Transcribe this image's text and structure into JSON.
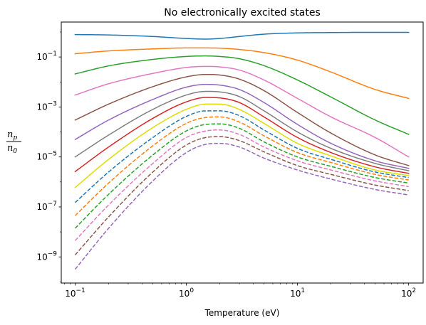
{
  "chart_data": {
    "type": "line",
    "title": "No electronically excited states",
    "xlabel": "Temperature (eV)",
    "ylabel_num": {
      "base": "n",
      "sub": "p"
    },
    "ylabel_den": {
      "base": "n",
      "sub": "0"
    },
    "xscale": "log",
    "yscale": "log",
    "xlim": [
      0.075,
      135
    ],
    "ylim": [
      9e-11,
      2.5
    ],
    "grid": false,
    "xticks": [
      {
        "value": 0.1,
        "base": "10",
        "exp": "−1"
      },
      {
        "value": 1,
        "base": "10",
        "exp": "0"
      },
      {
        "value": 10,
        "base": "10",
        "exp": "1"
      },
      {
        "value": 100,
        "base": "10",
        "exp": "2"
      }
    ],
    "yticks": [
      {
        "value": 1e-09,
        "base": "10",
        "exp": "−9"
      },
      {
        "value": 1e-07,
        "base": "10",
        "exp": "−7"
      },
      {
        "value": 1e-05,
        "base": "10",
        "exp": "−5"
      },
      {
        "value": 0.001,
        "base": "10",
        "exp": "−3"
      },
      {
        "value": 0.1,
        "base": "10",
        "exp": "−1"
      }
    ],
    "x": [
      0.1,
      0.2,
      0.5,
      1,
      1.5,
      2,
      3,
      5,
      10,
      20,
      50,
      100
    ],
    "series": [
      {
        "color": "#1f77b4",
        "dash": false,
        "values": [
          0.79,
          0.76,
          0.66,
          0.55,
          0.52,
          0.55,
          0.66,
          0.82,
          0.92,
          0.95,
          0.97,
          0.97
        ]
      },
      {
        "color": "#ff7f0e",
        "dash": false,
        "values": [
          0.135,
          0.175,
          0.21,
          0.23,
          0.23,
          0.225,
          0.2,
          0.15,
          0.075,
          0.025,
          0.005,
          0.0022
        ]
      },
      {
        "color": "#2ca02c",
        "dash": false,
        "values": [
          0.021,
          0.044,
          0.08,
          0.105,
          0.11,
          0.105,
          0.085,
          0.045,
          0.012,
          0.0025,
          0.0003,
          8e-05
        ]
      },
      {
        "color": "#e377c2",
        "dash": false,
        "values": [
          0.003,
          0.0085,
          0.022,
          0.038,
          0.042,
          0.04,
          0.03,
          0.012,
          0.0022,
          0.0004,
          6e-05,
          1e-05
        ]
      },
      {
        "color": "#8c564b",
        "dash": false,
        "values": [
          0.0003,
          0.0013,
          0.0065,
          0.016,
          0.02,
          0.019,
          0.013,
          0.0045,
          0.0006,
          9e-05,
          1.2e-05,
          4.5e-06
        ]
      },
      {
        "color": "#9467bd",
        "dash": false,
        "values": [
          5e-05,
          0.0003,
          0.002,
          0.0062,
          0.008,
          0.0075,
          0.005,
          0.0015,
          0.0002,
          3.5e-05,
          7e-06,
          3.5e-06
        ]
      },
      {
        "color": "#7f7f7f",
        "dash": false,
        "values": [
          1e-05,
          7.5e-05,
          0.0008,
          0.003,
          0.0042,
          0.004,
          0.0026,
          0.0007,
          0.0001,
          2.2e-05,
          5.5e-06,
          2.8e-06
        ]
      },
      {
        "color": "#d62728",
        "dash": false,
        "values": [
          2.6e-06,
          2.5e-05,
          0.00035,
          0.0016,
          0.0024,
          0.0023,
          0.0015,
          0.0004,
          6e-05,
          1.5e-05,
          4e-06,
          2.2e-06
        ]
      },
      {
        "color": "#dddd00",
        "dash": false,
        "values": [
          6e-07,
          8e-06,
          0.00015,
          0.0008,
          0.0013,
          0.0013,
          0.0008,
          0.00022,
          3.5e-05,
          1.1e-05,
          3e-06,
          1.8e-06
        ]
      },
      {
        "color": "#1f77b4",
        "dash": true,
        "values": [
          1.5e-07,
          2.5e-06,
          6e-05,
          0.00042,
          0.0007,
          0.0007,
          0.00045,
          0.00012,
          2.2e-05,
          8e-06,
          2.5e-06,
          1.5e-06
        ]
      },
      {
        "color": "#ff7f0e",
        "dash": true,
        "values": [
          4.5e-08,
          9e-07,
          2.8e-05,
          0.00022,
          0.00038,
          0.0004,
          0.00025,
          7e-05,
          1.5e-05,
          6e-06,
          2e-06,
          1.2e-06
        ]
      },
      {
        "color": "#2ca02c",
        "dash": true,
        "values": [
          1.4e-08,
          3.2e-07,
          1.2e-05,
          0.00011,
          0.0002,
          0.00021,
          0.00014,
          4e-05,
          1e-05,
          4.2e-06,
          1.5e-06,
          9e-07
        ]
      },
      {
        "color": "#e377c2",
        "dash": true,
        "values": [
          4.5e-09,
          1.2e-07,
          5.5e-06,
          6e-05,
          0.00011,
          0.00012,
          8e-05,
          2.5e-05,
          7e-06,
          3e-06,
          1.1e-06,
          6.5e-07
        ]
      },
      {
        "color": "#8c564b",
        "dash": true,
        "values": [
          1.2e-09,
          4e-08,
          2.5e-06,
          3e-05,
          6e-05,
          6.5e-05,
          4.5e-05,
          1.6e-05,
          4.5e-06,
          2e-06,
          7.5e-07,
          4.5e-07
        ]
      },
      {
        "color": "#9467bd",
        "dash": true,
        "values": [
          3.2e-10,
          1.4e-08,
          1.1e-06,
          1.5e-05,
          3.2e-05,
          3.5e-05,
          2.5e-05,
          9e-06,
          3e-06,
          1.3e-06,
          5e-07,
          3e-07
        ]
      }
    ]
  }
}
